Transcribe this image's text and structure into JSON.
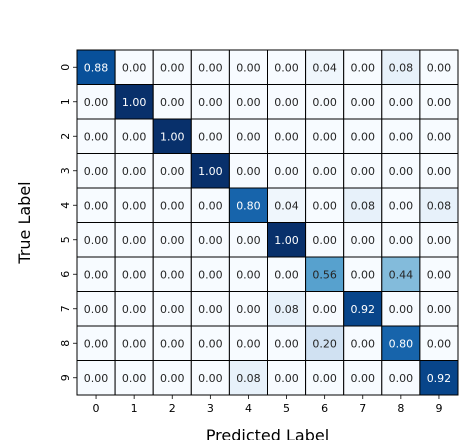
{
  "chart_data": {
    "type": "heatmap",
    "title": "",
    "xlabel": "Predicted Label",
    "ylabel": "True Label",
    "x_ticks": [
      "0",
      "1",
      "2",
      "3",
      "4",
      "5",
      "6",
      "7",
      "8",
      "9"
    ],
    "y_ticks": [
      "0",
      "1",
      "2",
      "3",
      "4",
      "5",
      "6",
      "7",
      "8",
      "9"
    ],
    "values": [
      [
        0.88,
        0.0,
        0.0,
        0.0,
        0.0,
        0.0,
        0.04,
        0.0,
        0.08,
        0.0
      ],
      [
        0.0,
        1.0,
        0.0,
        0.0,
        0.0,
        0.0,
        0.0,
        0.0,
        0.0,
        0.0
      ],
      [
        0.0,
        0.0,
        1.0,
        0.0,
        0.0,
        0.0,
        0.0,
        0.0,
        0.0,
        0.0
      ],
      [
        0.0,
        0.0,
        0.0,
        1.0,
        0.0,
        0.0,
        0.0,
        0.0,
        0.0,
        0.0
      ],
      [
        0.0,
        0.0,
        0.0,
        0.0,
        0.8,
        0.04,
        0.0,
        0.08,
        0.0,
        0.08
      ],
      [
        0.0,
        0.0,
        0.0,
        0.0,
        0.0,
        1.0,
        0.0,
        0.0,
        0.0,
        0.0
      ],
      [
        0.0,
        0.0,
        0.0,
        0.0,
        0.0,
        0.0,
        0.56,
        0.0,
        0.44,
        0.0
      ],
      [
        0.0,
        0.0,
        0.0,
        0.0,
        0.0,
        0.08,
        0.0,
        0.92,
        0.0,
        0.0
      ],
      [
        0.0,
        0.0,
        0.0,
        0.0,
        0.0,
        0.0,
        0.2,
        0.0,
        0.8,
        0.0
      ],
      [
        0.0,
        0.0,
        0.0,
        0.0,
        0.08,
        0.0,
        0.0,
        0.0,
        0.0,
        0.92
      ]
    ],
    "value_range": [
      0,
      1
    ],
    "colormap": "Blues",
    "colorbar": false,
    "grid": true
  }
}
